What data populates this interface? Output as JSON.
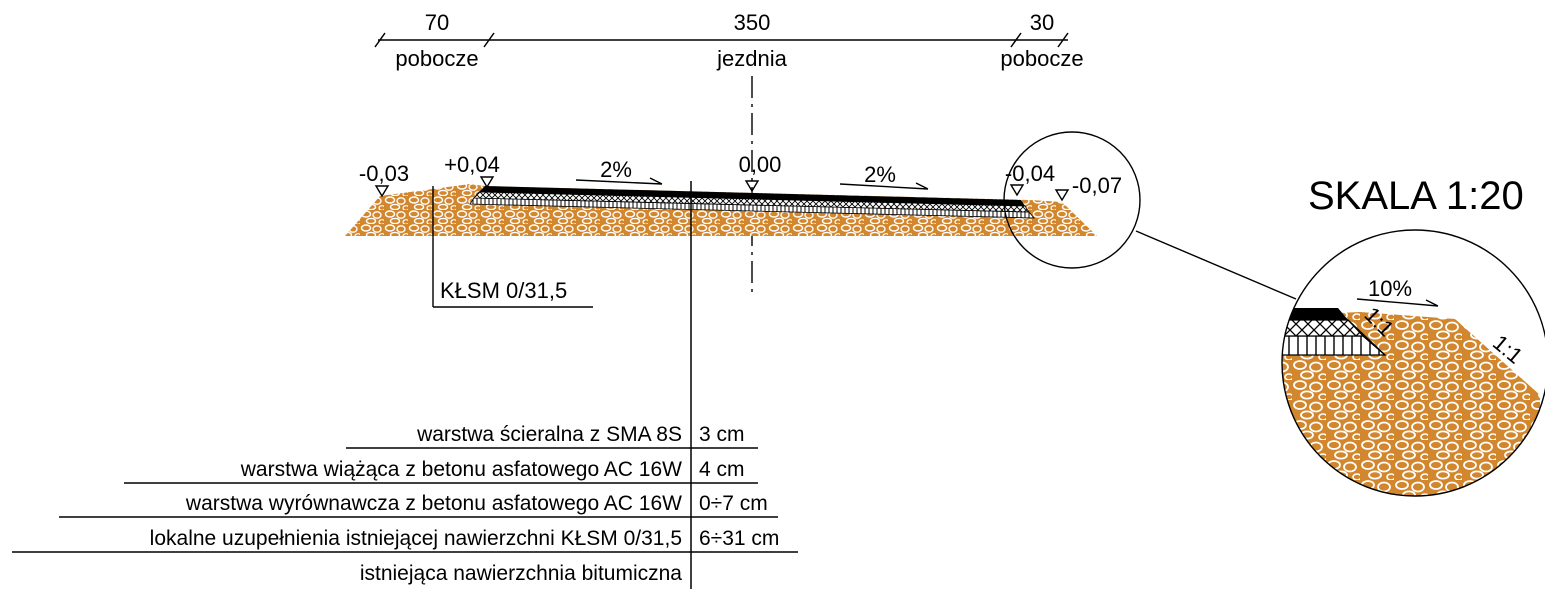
{
  "dimensions": {
    "left_width": "70",
    "left_label": "pobocze",
    "center_width": "350",
    "center_label": "jezdnia",
    "right_width": "30",
    "right_label": "pobocze"
  },
  "elevations": {
    "far_left": "-0,03",
    "left_edge": "+0,04",
    "axis": "0,00",
    "right_edge": "-0,04",
    "far_right": "-0,07"
  },
  "slopes": {
    "left": "2%",
    "right": "2%"
  },
  "material_label": "KŁSM 0/31,5",
  "scale_label": "SKALA 1:20",
  "detail": {
    "slope": "10%",
    "ratio_inner": "1:1",
    "ratio_outer": "1:1"
  },
  "layers": [
    {
      "name": "warstwa ścieralna z SMA 8S",
      "thickness": "3 cm"
    },
    {
      "name": "warstwa wiążąca z betonu asfatowego AC 16W",
      "thickness": "4 cm"
    },
    {
      "name": "warstwa wyrównawcza z betonu asfatowego AC 16W",
      "thickness": "0÷7 cm"
    },
    {
      "name": "lokalne uzupełnienia istniejącej nawierzchni KŁSM 0/31,5",
      "thickness": "6÷31 cm"
    },
    {
      "name": "istniejąca nawierzchnia bitumiczna",
      "thickness": ""
    }
  ],
  "colors": {
    "aggregate": "#d2872e",
    "stone_outline": "#ffffff",
    "asphalt": "#000000",
    "line": "#000000"
  }
}
